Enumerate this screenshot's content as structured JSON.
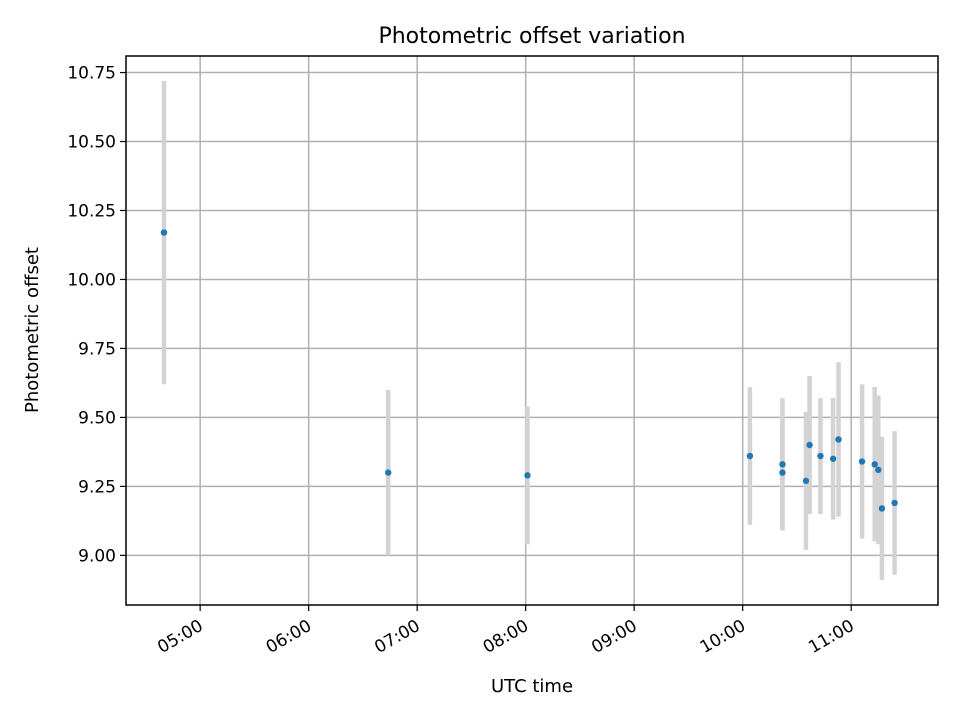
{
  "chart_data": {
    "type": "scatter",
    "title": "Photometric offset variation",
    "xlabel": "UTC time",
    "ylabel": "Photometric offset",
    "x_axis": {
      "kind": "time",
      "unit": "UTC hours",
      "xlim": [
        "04:19",
        "11:48"
      ],
      "ticks": [
        {
          "value": "05:00",
          "label": "05:00"
        },
        {
          "value": "06:00",
          "label": "06:00"
        },
        {
          "value": "07:00",
          "label": "07:00"
        },
        {
          "value": "08:00",
          "label": "08:00"
        },
        {
          "value": "09:00",
          "label": "09:00"
        },
        {
          "value": "10:00",
          "label": "10:00"
        },
        {
          "value": "11:00",
          "label": "11:00"
        }
      ],
      "tick_label_rotation_deg": 30
    },
    "y_axis": {
      "ylim": [
        8.82,
        10.81
      ],
      "ticks": [
        {
          "value": 9.0,
          "label": "9.00"
        },
        {
          "value": 9.25,
          "label": "9.25"
        },
        {
          "value": 9.5,
          "label": "9.50"
        },
        {
          "value": 9.75,
          "label": "9.75"
        },
        {
          "value": 10.0,
          "label": "10.00"
        },
        {
          "value": 10.25,
          "label": "10.25"
        },
        {
          "value": 10.5,
          "label": "10.50"
        },
        {
          "value": 10.75,
          "label": "10.75"
        }
      ]
    },
    "grid": true,
    "marker_color": "#1f77b4",
    "errorbar_color": "#d3d3d3",
    "points": [
      {
        "t": "04:40",
        "y": 10.17,
        "err": 0.55
      },
      {
        "t": "06:44",
        "y": 9.3,
        "err": 0.3
      },
      {
        "t": "08:01",
        "y": 9.29,
        "err": 0.25
      },
      {
        "t": "10:04",
        "y": 9.36,
        "err": 0.25
      },
      {
        "t": "10:22",
        "y": 9.3,
        "err": 0.2
      },
      {
        "t": "10:22",
        "y": 9.33,
        "err": 0.24
      },
      {
        "t": "10:35",
        "y": 9.27,
        "err": 0.25
      },
      {
        "t": "10:37",
        "y": 9.4,
        "err": 0.25
      },
      {
        "t": "10:43",
        "y": 9.36,
        "err": 0.21
      },
      {
        "t": "10:50",
        "y": 9.35,
        "err": 0.22
      },
      {
        "t": "10:53",
        "y": 9.42,
        "err": 0.28
      },
      {
        "t": "11:06",
        "y": 9.34,
        "err": 0.28
      },
      {
        "t": "11:13",
        "y": 9.33,
        "err": 0.28
      },
      {
        "t": "11:15",
        "y": 9.31,
        "err": 0.27
      },
      {
        "t": "11:17",
        "y": 9.17,
        "err": 0.26
      },
      {
        "t": "11:24",
        "y": 9.19,
        "err": 0.26
      }
    ]
  }
}
